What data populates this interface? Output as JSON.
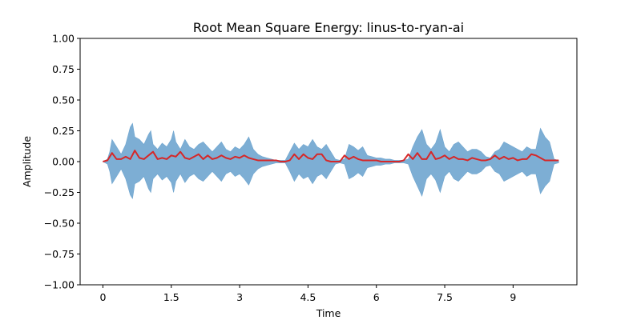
{
  "chart_data": {
    "type": "area",
    "title": "Root Mean Square Energy: linus-to-ryan-ai",
    "xlabel": "Time",
    "ylabel": "Amplitude",
    "xlim": [
      -0.5,
      10.4
    ],
    "ylim": [
      -1.0,
      1.0
    ],
    "x_ticks": [
      0,
      1.5,
      3,
      4.5,
      6,
      7.5,
      9
    ],
    "x_tick_labels": [
      "0",
      "1.5",
      "3",
      "4.5",
      "6",
      "7.5",
      "9"
    ],
    "y_ticks": [
      -1.0,
      -0.75,
      -0.5,
      -0.25,
      0.0,
      0.25,
      0.5,
      0.75,
      1.0
    ],
    "y_tick_labels": [
      "−1.00",
      "−0.75",
      "−0.50",
      "−0.25",
      "0.00",
      "0.25",
      "0.50",
      "0.75",
      "1.00"
    ],
    "grid": false,
    "colors": {
      "waveform": "#6fa5cf",
      "rms": "#d62728",
      "axes": "#000000"
    },
    "series": [
      {
        "kind": "waveform-envelope",
        "x": [
          0.0,
          0.1,
          0.15,
          0.2,
          0.3,
          0.4,
          0.5,
          0.6,
          0.65,
          0.7,
          0.8,
          0.9,
          1.0,
          1.05,
          1.1,
          1.2,
          1.3,
          1.4,
          1.5,
          1.55,
          1.6,
          1.7,
          1.8,
          1.9,
          2.0,
          2.1,
          2.2,
          2.3,
          2.4,
          2.5,
          2.6,
          2.7,
          2.8,
          2.9,
          3.0,
          3.1,
          3.2,
          3.3,
          3.4,
          3.5,
          3.6,
          3.7,
          3.8,
          3.9,
          4.0,
          4.1,
          4.2,
          4.3,
          4.4,
          4.5,
          4.6,
          4.7,
          4.8,
          4.9,
          5.0,
          5.1,
          5.2,
          5.3,
          5.4,
          5.5,
          5.6,
          5.7,
          5.8,
          5.9,
          6.0,
          6.1,
          6.2,
          6.3,
          6.4,
          6.5,
          6.6,
          6.7,
          6.8,
          6.9,
          7.0,
          7.1,
          7.2,
          7.3,
          7.4,
          7.5,
          7.6,
          7.7,
          7.8,
          7.9,
          8.0,
          8.1,
          8.2,
          8.3,
          8.4,
          8.5,
          8.6,
          8.7,
          8.8,
          8.9,
          9.0,
          9.1,
          9.2,
          9.3,
          9.4,
          9.5,
          9.6,
          9.7,
          9.8,
          9.9,
          10.0
        ],
        "upper": [
          0.0,
          0.02,
          0.08,
          0.18,
          0.12,
          0.06,
          0.14,
          0.28,
          0.31,
          0.2,
          0.18,
          0.14,
          0.22,
          0.25,
          0.14,
          0.1,
          0.15,
          0.12,
          0.18,
          0.25,
          0.16,
          0.1,
          0.18,
          0.12,
          0.1,
          0.14,
          0.16,
          0.12,
          0.08,
          0.12,
          0.16,
          0.1,
          0.08,
          0.12,
          0.1,
          0.14,
          0.2,
          0.1,
          0.06,
          0.04,
          0.03,
          0.02,
          0.01,
          0.01,
          0.01,
          0.08,
          0.15,
          0.1,
          0.14,
          0.12,
          0.18,
          0.12,
          0.1,
          0.14,
          0.08,
          0.02,
          0.01,
          0.02,
          0.14,
          0.12,
          0.09,
          0.12,
          0.05,
          0.04,
          0.03,
          0.03,
          0.02,
          0.02,
          0.01,
          0.01,
          0.01,
          0.02,
          0.12,
          0.2,
          0.26,
          0.14,
          0.1,
          0.15,
          0.26,
          0.12,
          0.08,
          0.14,
          0.16,
          0.12,
          0.08,
          0.1,
          0.1,
          0.08,
          0.04,
          0.03,
          0.08,
          0.1,
          0.16,
          0.14,
          0.12,
          0.1,
          0.08,
          0.12,
          0.1,
          0.1,
          0.27,
          0.2,
          0.16,
          0.02,
          0.01
        ],
        "lower": [
          0.0,
          -0.02,
          -0.08,
          -0.18,
          -0.12,
          -0.06,
          -0.14,
          -0.27,
          -0.3,
          -0.18,
          -0.16,
          -0.12,
          -0.22,
          -0.25,
          -0.14,
          -0.1,
          -0.15,
          -0.12,
          -0.17,
          -0.25,
          -0.16,
          -0.1,
          -0.17,
          -0.12,
          -0.1,
          -0.14,
          -0.16,
          -0.12,
          -0.08,
          -0.12,
          -0.16,
          -0.1,
          -0.08,
          -0.12,
          -0.1,
          -0.14,
          -0.19,
          -0.1,
          -0.06,
          -0.04,
          -0.03,
          -0.02,
          -0.01,
          -0.01,
          -0.01,
          -0.08,
          -0.16,
          -0.1,
          -0.14,
          -0.12,
          -0.18,
          -0.12,
          -0.1,
          -0.14,
          -0.08,
          -0.02,
          -0.01,
          -0.02,
          -0.14,
          -0.12,
          -0.09,
          -0.12,
          -0.05,
          -0.04,
          -0.03,
          -0.03,
          -0.02,
          -0.02,
          -0.01,
          -0.01,
          -0.01,
          -0.02,
          -0.12,
          -0.2,
          -0.28,
          -0.14,
          -0.1,
          -0.15,
          -0.25,
          -0.12,
          -0.08,
          -0.14,
          -0.16,
          -0.12,
          -0.08,
          -0.1,
          -0.1,
          -0.08,
          -0.04,
          -0.03,
          -0.08,
          -0.1,
          -0.16,
          -0.14,
          -0.12,
          -0.1,
          -0.08,
          -0.12,
          -0.1,
          -0.1,
          -0.26,
          -0.2,
          -0.16,
          -0.02,
          -0.01
        ]
      },
      {
        "kind": "rms-line",
        "x": [
          0.0,
          0.1,
          0.2,
          0.3,
          0.4,
          0.5,
          0.6,
          0.7,
          0.8,
          0.9,
          1.0,
          1.1,
          1.2,
          1.3,
          1.4,
          1.5,
          1.6,
          1.7,
          1.8,
          1.9,
          2.0,
          2.1,
          2.2,
          2.3,
          2.4,
          2.5,
          2.6,
          2.7,
          2.8,
          2.9,
          3.0,
          3.1,
          3.2,
          3.3,
          3.4,
          3.5,
          3.6,
          3.7,
          3.8,
          3.9,
          4.0,
          4.1,
          4.2,
          4.3,
          4.4,
          4.5,
          4.6,
          4.7,
          4.8,
          4.9,
          5.0,
          5.1,
          5.2,
          5.3,
          5.4,
          5.5,
          5.6,
          5.7,
          5.8,
          5.9,
          6.0,
          6.1,
          6.2,
          6.3,
          6.4,
          6.5,
          6.6,
          6.7,
          6.8,
          6.9,
          7.0,
          7.1,
          7.2,
          7.3,
          7.4,
          7.5,
          7.6,
          7.7,
          7.8,
          7.9,
          8.0,
          8.1,
          8.2,
          8.3,
          8.4,
          8.5,
          8.6,
          8.7,
          8.8,
          8.9,
          9.0,
          9.1,
          9.2,
          9.3,
          9.4,
          9.5,
          9.6,
          9.7,
          9.8,
          9.9,
          10.0
        ],
        "y": [
          0.0,
          0.01,
          0.07,
          0.02,
          0.02,
          0.04,
          0.02,
          0.09,
          0.03,
          0.02,
          0.05,
          0.08,
          0.02,
          0.03,
          0.02,
          0.05,
          0.04,
          0.08,
          0.03,
          0.02,
          0.04,
          0.06,
          0.02,
          0.05,
          0.02,
          0.03,
          0.05,
          0.03,
          0.02,
          0.04,
          0.03,
          0.05,
          0.03,
          0.02,
          0.01,
          0.01,
          0.01,
          0.01,
          0.01,
          0.0,
          0.0,
          0.01,
          0.06,
          0.02,
          0.06,
          0.03,
          0.02,
          0.06,
          0.06,
          0.01,
          0.0,
          0.0,
          0.0,
          0.05,
          0.02,
          0.04,
          0.02,
          0.01,
          0.01,
          0.01,
          0.01,
          0.0,
          0.0,
          0.0,
          0.0,
          0.0,
          0.01,
          0.06,
          0.02,
          0.07,
          0.02,
          0.02,
          0.08,
          0.02,
          0.03,
          0.05,
          0.02,
          0.04,
          0.02,
          0.02,
          0.01,
          0.03,
          0.02,
          0.01,
          0.01,
          0.02,
          0.05,
          0.02,
          0.04,
          0.02,
          0.03,
          0.01,
          0.02,
          0.02,
          0.06,
          0.05,
          0.03,
          0.01,
          0.01,
          0.01,
          0.01
        ]
      }
    ]
  }
}
